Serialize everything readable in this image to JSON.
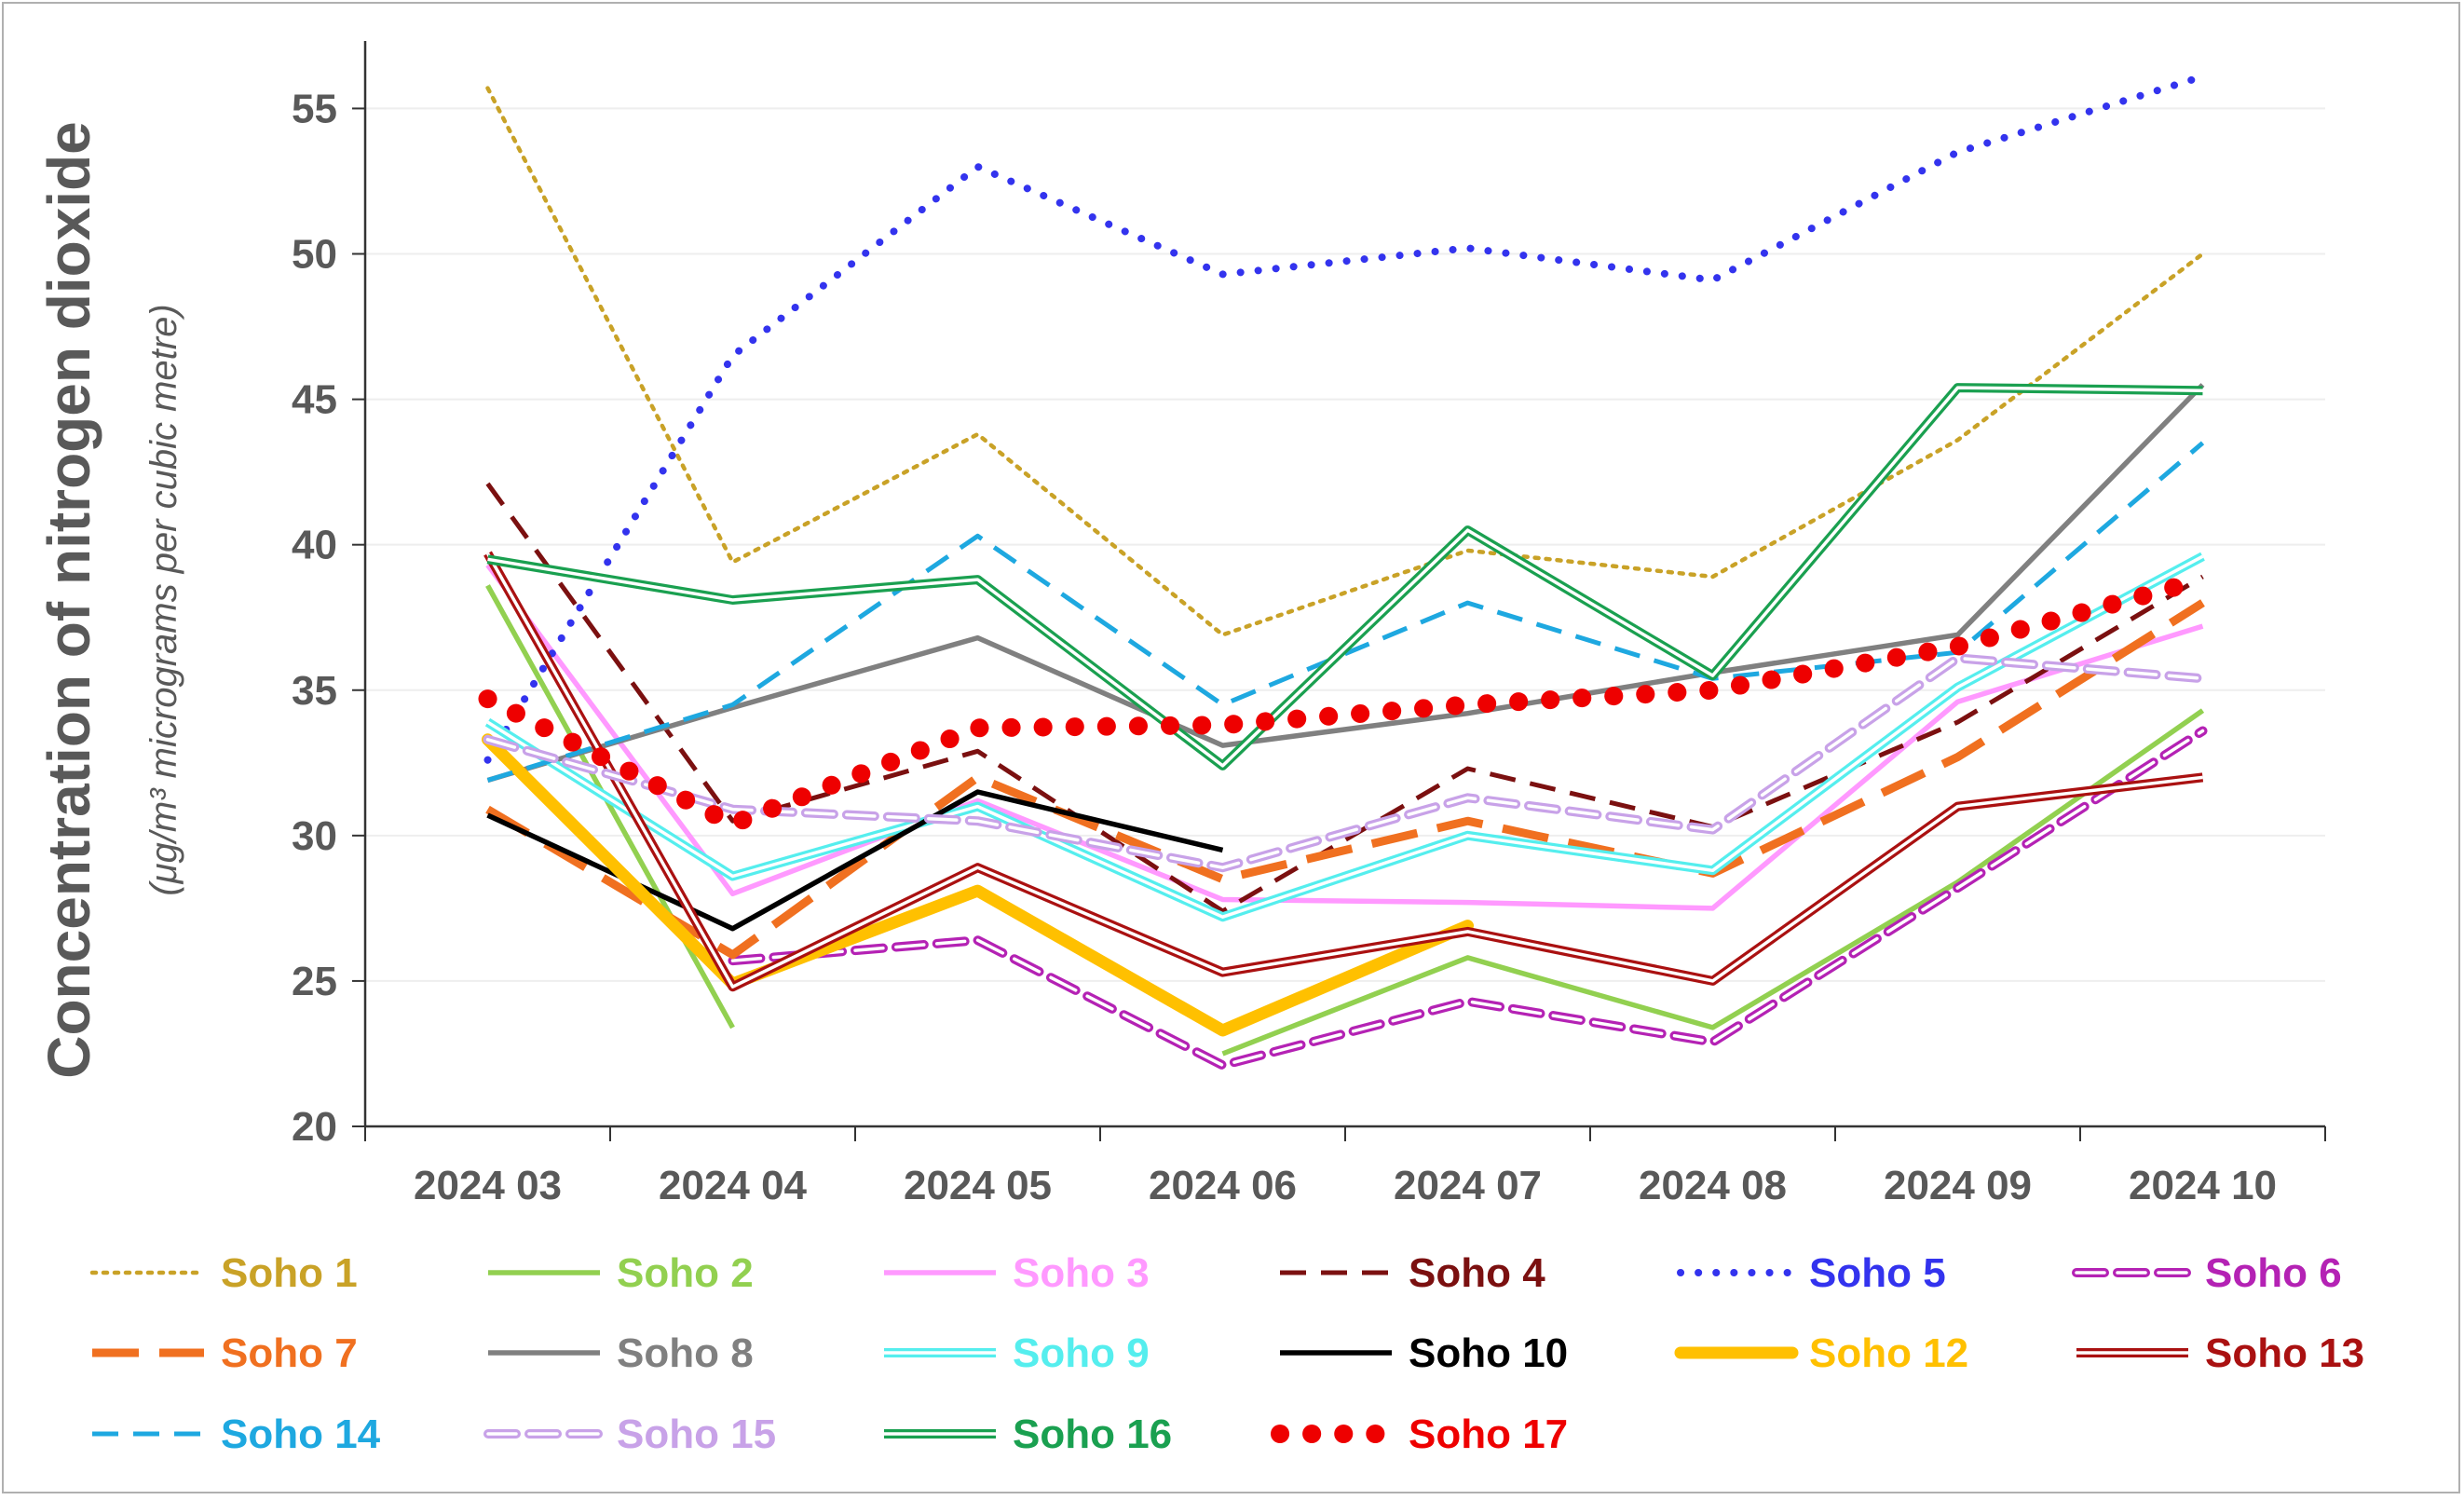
{
  "chart_data": {
    "type": "line",
    "title": "",
    "xlabel": "",
    "ylabel": "Concentration of nitrogen dioxide",
    "ylabel_sub": "(μg/m³ micrograms per cubic metre)",
    "ylim": [
      20,
      57
    ],
    "yticks": [
      20,
      25,
      30,
      35,
      40,
      45,
      50,
      55
    ],
    "grid": true,
    "legend_position": "bottom",
    "categories": [
      "2024 03",
      "2024 04",
      "2024 05",
      "2024 06",
      "2024 07",
      "2024 08",
      "2024 09",
      "2024 10"
    ],
    "series": [
      {
        "name": "Soho 1",
        "color": "#C9A227",
        "style": "dotted",
        "values": [
          55.7,
          39.4,
          43.8,
          36.9,
          39.8,
          38.9,
          43.6,
          50.0
        ]
      },
      {
        "name": "Soho 2",
        "color": "#92D050",
        "style": "solid",
        "values": [
          38.6,
          23.4,
          null,
          22.5,
          25.8,
          23.4,
          28.4,
          34.3
        ]
      },
      {
        "name": "Soho 3",
        "color": "#FF99FF",
        "style": "solid",
        "values": [
          39.3,
          28.0,
          31.2,
          27.8,
          27.7,
          27.5,
          34.6,
          37.2
        ]
      },
      {
        "name": "Soho 4",
        "color": "#7B1010",
        "style": "dashed",
        "values": [
          42.1,
          30.5,
          32.9,
          27.4,
          32.3,
          30.3,
          33.9,
          38.9
        ]
      },
      {
        "name": "Soho 5",
        "color": "#3333EE",
        "style": "dotted-round",
        "values": [
          32.6,
          46.5,
          53.0,
          49.3,
          50.2,
          49.1,
          53.5,
          56.1
        ]
      },
      {
        "name": "Soho 6",
        "color": "#B422B4",
        "style": "double-dash",
        "values": [
          null,
          25.7,
          26.4,
          22.1,
          24.3,
          22.9,
          28.2,
          33.6
        ]
      },
      {
        "name": "Soho 7",
        "color": "#F07020",
        "style": "long-dash",
        "values": [
          30.9,
          25.9,
          32.0,
          28.5,
          30.5,
          28.7,
          32.7,
          38.0
        ]
      },
      {
        "name": "Soho 8",
        "color": "#808080",
        "style": "solid",
        "values": [
          31.9,
          34.4,
          36.8,
          33.1,
          34.2,
          35.6,
          36.9,
          45.5
        ]
      },
      {
        "name": "Soho 9",
        "color": "#55EEEE",
        "style": "double",
        "values": [
          33.9,
          28.6,
          31.0,
          27.2,
          30.0,
          28.8,
          35.1,
          39.6
        ]
      },
      {
        "name": "Soho 10",
        "color": "#000000",
        "style": "solid",
        "values": [
          30.7,
          26.8,
          31.5,
          29.5,
          null,
          null,
          null,
          null
        ]
      },
      {
        "name": "Soho 12",
        "color": "#FFC000",
        "style": "thick",
        "values": [
          33.3,
          24.9,
          28.1,
          23.3,
          26.9,
          null,
          null,
          null
        ]
      },
      {
        "name": "Soho 13",
        "color": "#AA1111",
        "style": "double",
        "values": [
          39.7,
          24.8,
          28.9,
          25.3,
          26.7,
          25.0,
          31.0,
          32.0
        ]
      },
      {
        "name": "Soho 14",
        "color": "#1EA8E0",
        "style": "dashed",
        "values": [
          31.9,
          34.5,
          40.3,
          34.5,
          38.0,
          35.4,
          36.3,
          43.5
        ]
      },
      {
        "name": "Soho 15",
        "color": "#C8A2E8",
        "style": "double-dash",
        "values": [
          33.3,
          30.9,
          30.5,
          28.9,
          31.3,
          30.2,
          36.1,
          35.4
        ]
      },
      {
        "name": "Soho 16",
        "color": "#1AA050",
        "style": "double",
        "values": [
          39.5,
          38.1,
          38.8,
          32.4,
          40.5,
          35.5,
          45.4,
          45.3
        ]
      },
      {
        "name": "Soho 17",
        "color": "#EE0000",
        "style": "big-dots",
        "values": [
          34.7,
          30.4,
          33.7,
          33.8,
          34.5,
          35.0,
          36.5,
          38.8
        ]
      }
    ]
  }
}
